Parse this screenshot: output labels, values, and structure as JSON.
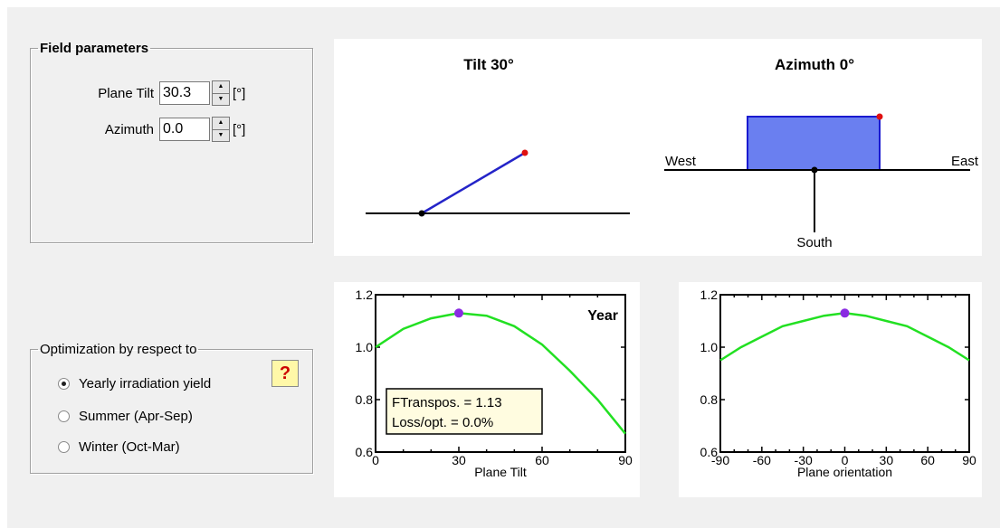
{
  "field_parameters": {
    "title": "Field parameters",
    "plane_tilt": {
      "label": "Plane Tilt",
      "value": "30.3",
      "unit": "[°]"
    },
    "azimuth": {
      "label": "Azimuth",
      "value": "0.0",
      "unit": "[°]"
    }
  },
  "optimization": {
    "title": "Optimization by respect to",
    "options": [
      {
        "label": "Yearly irradiation yield",
        "checked": true
      },
      {
        "label": "Summer (Apr-Sep)",
        "checked": false
      },
      {
        "label": "Winter (Oct-Mar)",
        "checked": false
      }
    ],
    "help_label": "?"
  },
  "tilt_diagram": {
    "title": "Tilt 30°",
    "tilt_deg": 30
  },
  "azimuth_diagram": {
    "title": "Azimuth 0°",
    "west": "West",
    "east": "East",
    "south": "South"
  },
  "chart_data": [
    {
      "type": "line",
      "xlabel": "Plane Tilt",
      "xlim": [
        0,
        90
      ],
      "ylim": [
        0.6,
        1.2
      ],
      "xticks": [
        "0",
        "30",
        "60",
        "90"
      ],
      "yticks": [
        "0.6",
        "0.8",
        "1.0",
        "1.2"
      ],
      "annotation": "Year",
      "series": [
        {
          "x": [
            0,
            10,
            20,
            30,
            40,
            50,
            60,
            70,
            80,
            90
          ],
          "y": [
            1.0,
            1.07,
            1.11,
            1.13,
            1.12,
            1.08,
            1.01,
            0.91,
            0.8,
            0.67
          ]
        }
      ],
      "optimum": {
        "x": 30,
        "y": 1.13
      },
      "info": {
        "ftranspos": "FTranspos. = 1.13",
        "loss": "Loss/opt. = 0.0%"
      }
    },
    {
      "type": "line",
      "xlabel": "Plane orientation",
      "xlim": [
        -90,
        90
      ],
      "ylim": [
        0.6,
        1.2
      ],
      "xticks": [
        "-90",
        "-60",
        "-30",
        "0",
        "30",
        "60",
        "90"
      ],
      "yticks": [
        "0.6",
        "0.8",
        "1.0",
        "1.2"
      ],
      "series": [
        {
          "x": [
            -90,
            -75,
            -60,
            -45,
            -30,
            -15,
            0,
            15,
            30,
            45,
            60,
            75,
            90
          ],
          "y": [
            0.95,
            1.0,
            1.04,
            1.08,
            1.1,
            1.12,
            1.13,
            1.12,
            1.1,
            1.08,
            1.04,
            1.0,
            0.95
          ]
        }
      ],
      "optimum": {
        "x": 0,
        "y": 1.13
      }
    }
  ]
}
